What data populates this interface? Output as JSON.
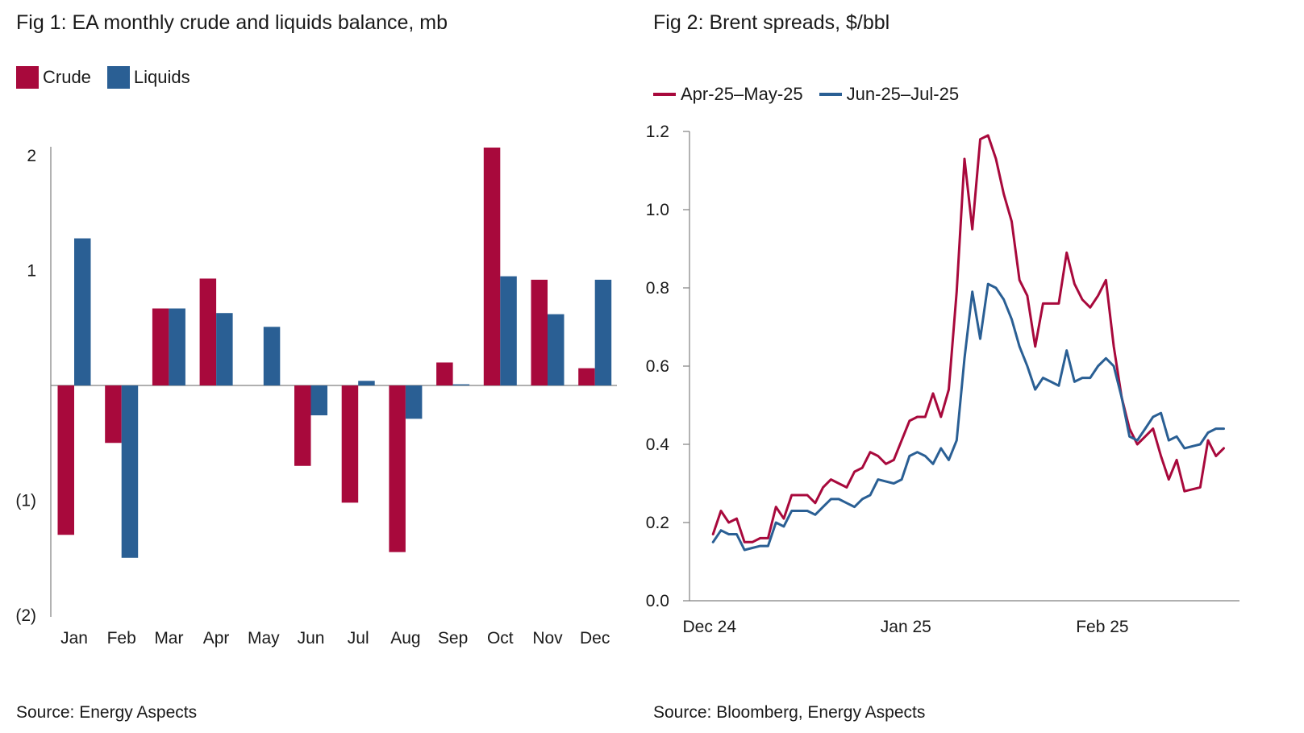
{
  "colors": {
    "crude": "#a8093c",
    "liquids": "#2a5f94",
    "axis": "#808080"
  },
  "fig1": {
    "title": "Fig 1: EA monthly crude and liquids balance, mb",
    "source": "Source: Energy Aspects",
    "legend": {
      "crude": "Crude",
      "liquids": "Liquids"
    }
  },
  "fig2": {
    "title": "Fig 2: Brent spreads, $/bbl",
    "source": "Source: Bloomberg, Energy Aspects",
    "legend": {
      "s1": "Apr-25–May-25",
      "s2": "Jun-25–Jul-25"
    }
  },
  "chart_data": [
    {
      "type": "bar",
      "title": "Fig 1: EA monthly crude and liquids balance, mb",
      "xlabel": "",
      "ylabel": "",
      "categories": [
        "Jan",
        "Feb",
        "Mar",
        "Apr",
        "May",
        "Jun",
        "Jul",
        "Aug",
        "Sep",
        "Oct",
        "Nov",
        "Dec"
      ],
      "series": [
        {
          "name": "Crude",
          "color": "#a8093c",
          "values": [
            -1.3,
            -0.5,
            0.67,
            0.93,
            0,
            -0.7,
            -1.02,
            -1.45,
            0.2,
            2.07,
            0.92,
            0.15
          ]
        },
        {
          "name": "Liquids",
          "color": "#2a5f94",
          "values": [
            1.28,
            -1.5,
            0.67,
            0.63,
            0.51,
            -0.26,
            0.04,
            -0.29,
            0.01,
            0.95,
            0.62,
            0.92
          ]
        }
      ],
      "ylim": [
        -2,
        2
      ],
      "yticks": [
        -2,
        -1,
        1,
        2
      ],
      "ytick_labels": [
        "(2)",
        "(1)",
        "1",
        "2"
      ],
      "legend_position": "top-left"
    },
    {
      "type": "line",
      "title": "Fig 2: Brent spreads, $/bbl",
      "xlabel": "",
      "ylabel": "",
      "x_tick_labels": [
        "Dec 24",
        "Jan 25",
        "Feb 25"
      ],
      "x_tick_positions": [
        1,
        26,
        51
      ],
      "xlim": [
        0,
        70
      ],
      "ylim": [
        0,
        1.2
      ],
      "yticks": [
        0.0,
        0.2,
        0.4,
        0.6,
        0.8,
        1.0,
        1.2
      ],
      "ytick_labels": [
        "0.0",
        "0.2",
        "0.4",
        "0.6",
        "0.8",
        "1.0",
        "1.2"
      ],
      "legend_position": "top-left",
      "series": [
        {
          "name": "Apr-25–May-25",
          "color": "#a8093c",
          "x": [
            3,
            4,
            5,
            6,
            7,
            8,
            9,
            10,
            11,
            12,
            13,
            14,
            15,
            16,
            17,
            18,
            19,
            20,
            21,
            22,
            23,
            24,
            25,
            26,
            27,
            28,
            29,
            30,
            31,
            32,
            33,
            34,
            35,
            36,
            37,
            38,
            39,
            40,
            41,
            42,
            43,
            44,
            45,
            46,
            47,
            48,
            49,
            50,
            51,
            52,
            53,
            54,
            55,
            56,
            57,
            58,
            59,
            60,
            61,
            62,
            63,
            64,
            65,
            66,
            67,
            68
          ],
          "y": [
            0.17,
            0.23,
            0.2,
            0.21,
            0.15,
            0.15,
            0.16,
            0.16,
            0.24,
            0.21,
            0.27,
            0.27,
            0.27,
            0.25,
            0.29,
            0.31,
            0.3,
            0.29,
            0.33,
            0.34,
            0.38,
            0.37,
            0.35,
            0.36,
            0.41,
            0.46,
            0.47,
            0.47,
            0.53,
            0.47,
            0.54,
            0.79,
            1.13,
            0.95,
            1.18,
            1.19,
            1.13,
            1.04,
            0.97,
            0.82,
            0.78,
            0.65,
            0.76,
            0.76,
            0.76,
            0.89,
            0.81,
            0.77,
            0.75,
            0.78,
            0.82,
            0.65,
            0.52,
            0.44,
            0.4,
            0.42,
            0.44,
            0.37,
            0.31,
            0.36,
            0.28,
            0.285,
            0.29,
            0.41,
            0.37,
            0.39
          ]
        },
        {
          "name": "Jun-25–Jul-25",
          "color": "#2a5f94",
          "x": [
            3,
            4,
            5,
            6,
            7,
            8,
            9,
            10,
            11,
            12,
            13,
            14,
            15,
            16,
            17,
            18,
            19,
            20,
            21,
            22,
            23,
            24,
            25,
            26,
            27,
            28,
            29,
            30,
            31,
            32,
            33,
            34,
            35,
            36,
            37,
            38,
            39,
            40,
            41,
            42,
            43,
            44,
            45,
            46,
            47,
            48,
            49,
            50,
            51,
            52,
            53,
            54,
            55,
            56,
            57,
            58,
            59,
            60,
            61,
            62,
            63,
            64,
            65,
            66,
            67,
            68
          ],
          "y": [
            0.15,
            0.18,
            0.17,
            0.17,
            0.13,
            0.135,
            0.14,
            0.14,
            0.2,
            0.19,
            0.23,
            0.23,
            0.23,
            0.22,
            0.24,
            0.26,
            0.26,
            0.25,
            0.24,
            0.26,
            0.27,
            0.31,
            0.305,
            0.3,
            0.31,
            0.37,
            0.38,
            0.37,
            0.35,
            0.39,
            0.36,
            0.41,
            0.62,
            0.79,
            0.67,
            0.81,
            0.8,
            0.77,
            0.72,
            0.65,
            0.6,
            0.54,
            0.57,
            0.56,
            0.55,
            0.64,
            0.56,
            0.57,
            0.57,
            0.6,
            0.62,
            0.6,
            0.52,
            0.42,
            0.41,
            0.44,
            0.47,
            0.48,
            0.41,
            0.42,
            0.39,
            0.395,
            0.4,
            0.43,
            0.44,
            0.44
          ]
        }
      ]
    }
  ]
}
